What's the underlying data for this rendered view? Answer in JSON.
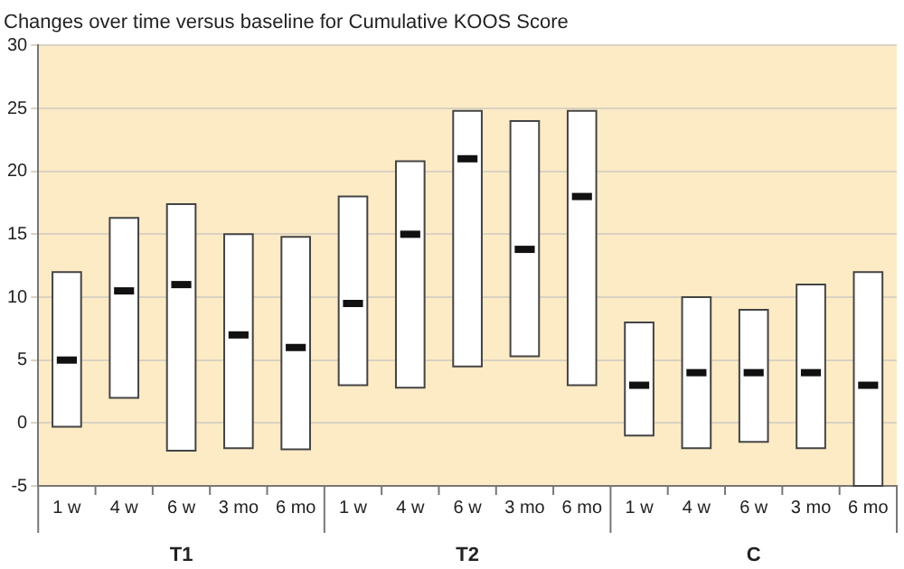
{
  "chart_data": {
    "type": "box",
    "title": "Changes over time versus baseline for Cumulative KOOS Score",
    "categories": [
      "1 w",
      "4 w",
      "6 w",
      "3 mo",
      "6 mo",
      "1 w",
      "4 w",
      "6 w",
      "3 mo",
      "6 mo",
      "1 w",
      "4 w",
      "6 w",
      "3 mo",
      "6 mo"
    ],
    "boxes": [
      {
        "low": -0.3,
        "q1": -0.3,
        "median": 5,
        "q3": 12,
        "high": 12
      },
      {
        "low": 2,
        "q1": 2,
        "median": 10.5,
        "q3": 16.3,
        "high": 16.3
      },
      {
        "low": -2.2,
        "q1": -2.2,
        "median": 11,
        "q3": 17.4,
        "high": 17.4
      },
      {
        "low": -2,
        "q1": -2,
        "median": 7,
        "q3": 15,
        "high": 15
      },
      {
        "low": -2.1,
        "q1": -2.1,
        "median": 6,
        "q3": 14.8,
        "high": 14.8
      },
      {
        "low": 3,
        "q1": 3,
        "median": 9.5,
        "q3": 18,
        "high": 18
      },
      {
        "low": 2.8,
        "q1": 2.8,
        "median": 15,
        "q3": 20.8,
        "high": 20.8
      },
      {
        "low": 4.5,
        "q1": 4.5,
        "median": 21,
        "q3": 24.8,
        "high": 24.8
      },
      {
        "low": 5.3,
        "q1": 5.3,
        "median": 13.8,
        "q3": 24,
        "high": 24
      },
      {
        "low": 3,
        "q1": 3,
        "median": 18,
        "q3": 24.8,
        "high": 24.8
      },
      {
        "low": -1,
        "q1": -1,
        "median": 3,
        "q3": 8,
        "high": 8
      },
      {
        "low": -2,
        "q1": -2,
        "median": 4,
        "q3": 10,
        "high": 10
      },
      {
        "low": -1.5,
        "q1": -1.5,
        "median": 4,
        "q3": 9,
        "high": 9
      },
      {
        "low": -2,
        "q1": -2,
        "median": 4,
        "q3": 11,
        "high": 11
      },
      {
        "low": -5,
        "q1": -5,
        "median": 3,
        "q3": 12,
        "high": 12
      }
    ],
    "color": "#ffffff",
    "ylim": [
      -5,
      30
    ],
    "yticks": [
      -5,
      0,
      5,
      10,
      15,
      20,
      25,
      30
    ],
    "grid": "y",
    "annotations": [
      "T1",
      "T2",
      "C"
    ]
  }
}
